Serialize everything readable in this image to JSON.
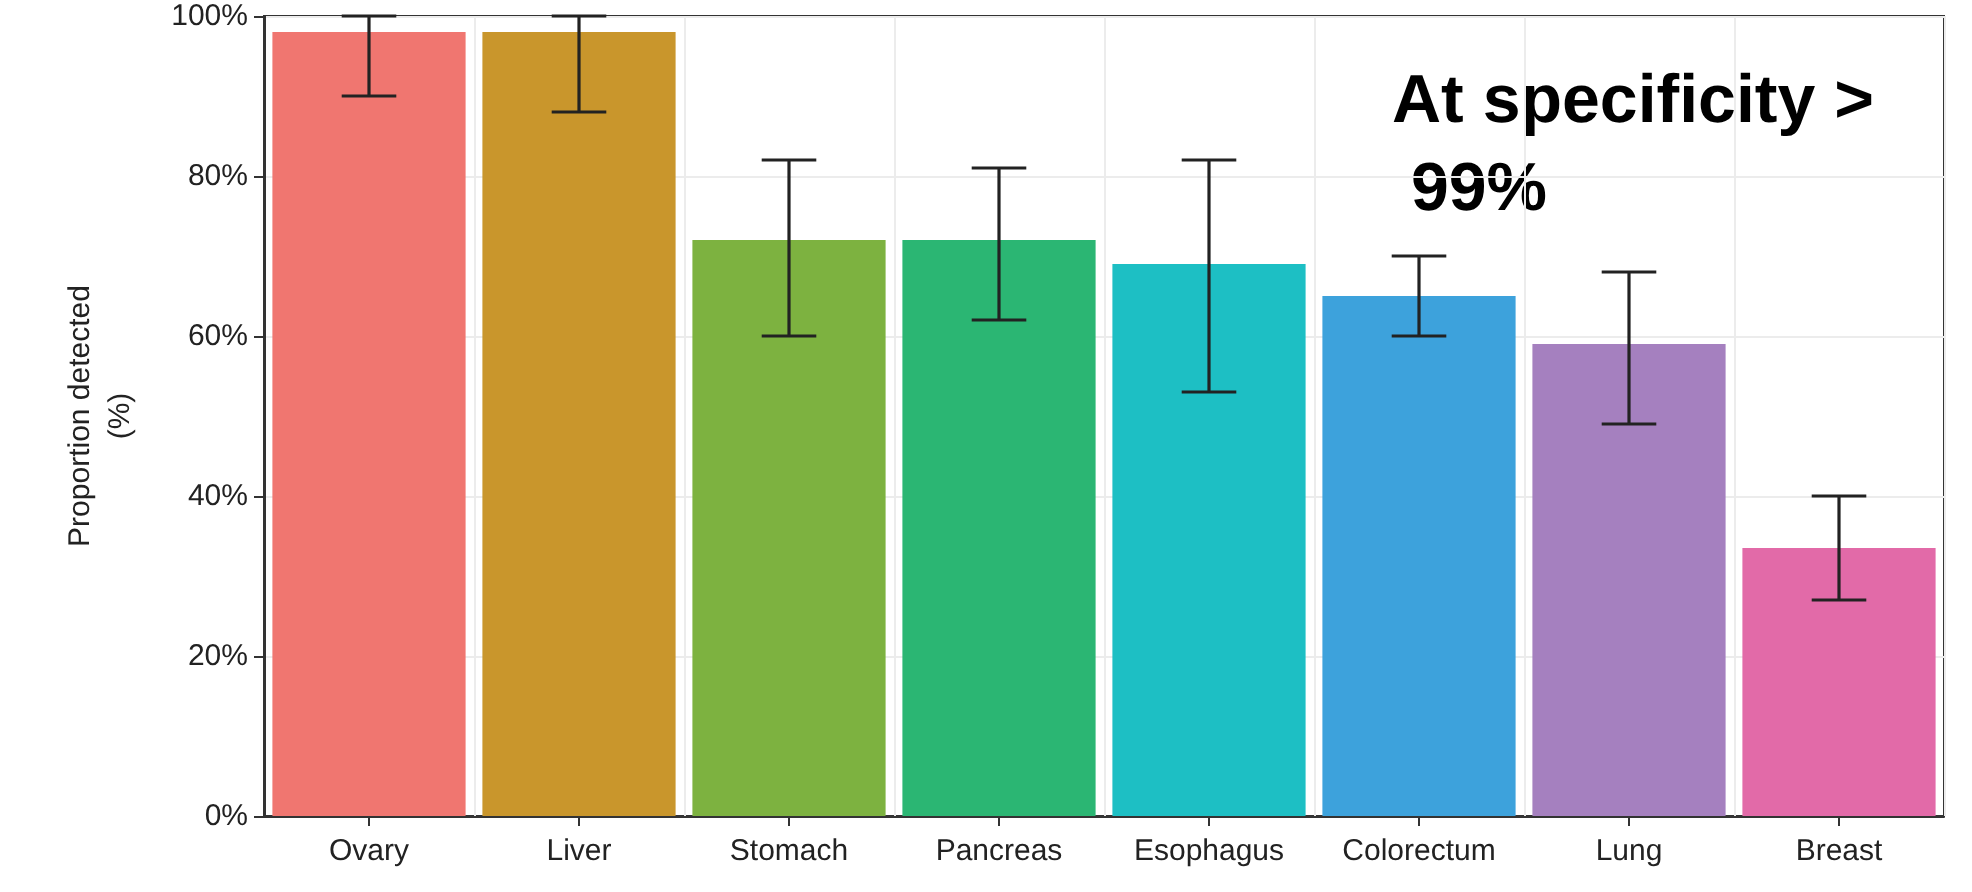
{
  "chart_data": {
    "type": "bar",
    "ylabel": "Proportion detected\n(%)",
    "categories": [
      "Ovary",
      "Liver",
      "Stomach",
      "Pancreas",
      "Esophagus",
      "Colorectum",
      "Lung",
      "Breast"
    ],
    "values": [
      98,
      98,
      72,
      72,
      69,
      65,
      59,
      33.5
    ],
    "errors": [
      [
        90,
        100
      ],
      [
        88,
        100
      ],
      [
        60,
        82
      ],
      [
        62,
        81
      ],
      [
        53,
        82
      ],
      [
        60,
        70
      ],
      [
        49,
        68
      ],
      [
        27,
        40
      ]
    ],
    "colors": [
      "#f07670",
      "#c9962c",
      "#7db240",
      "#2bb673",
      "#1dbfc4",
      "#3da2dc",
      "#a580bf",
      "#e26aa8"
    ],
    "ylim": [
      0,
      100
    ],
    "yticks": [
      {
        "value": 0,
        "label": "0%"
      },
      {
        "value": 20,
        "label": "20%"
      },
      {
        "value": 40,
        "label": "40%"
      },
      {
        "value": 60,
        "label": "60%"
      },
      {
        "value": 80,
        "label": "80%"
      },
      {
        "value": 100,
        "label": "100%"
      }
    ],
    "grid": true,
    "annotations": [
      "At specificity > 99%"
    ]
  }
}
